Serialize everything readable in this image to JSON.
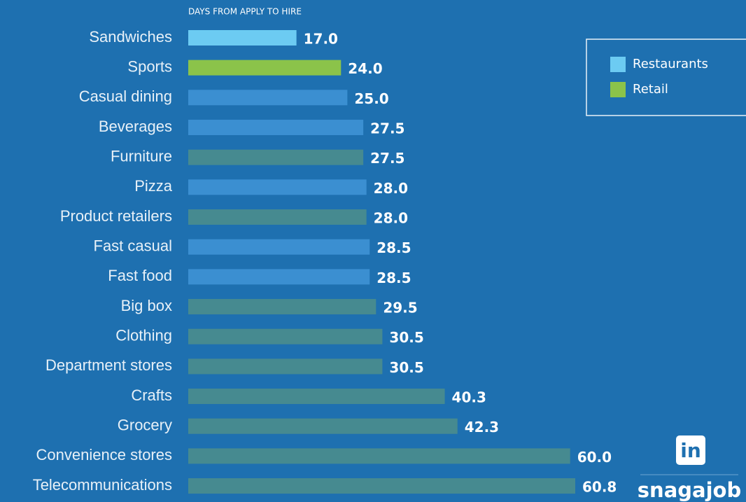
{
  "chart_data": {
    "type": "bar",
    "orientation": "horizontal",
    "axis_label": "DAYS FROM APPLY TO HIRE",
    "categories": [
      "Sandwiches",
      "Sports",
      "Casual dining",
      "Beverages",
      "Furniture",
      "Pizza",
      "Product retailers",
      "Fast casual",
      "Fast food",
      "Big box",
      "Clothing",
      "Department stores",
      "Crafts",
      "Grocery",
      "Convenience stores",
      "Telecommunications"
    ],
    "values": [
      17.0,
      24.0,
      25.0,
      27.5,
      27.5,
      28.0,
      28.0,
      28.5,
      28.5,
      29.5,
      30.5,
      30.5,
      40.3,
      42.3,
      60.0,
      60.8
    ],
    "value_labels": [
      "17.0",
      "24.0",
      "25.0",
      "27.5",
      "27.5",
      "28.0",
      "28.0",
      "28.5",
      "28.5",
      "29.5",
      "30.5",
      "30.5",
      "40.3",
      "42.3",
      "60.0",
      "60.8"
    ],
    "colors": [
      "#6ccbf2",
      "#8bc34a",
      "#3b8fd1",
      "#3b8fd1",
      "#468a90",
      "#3b8fd1",
      "#468a90",
      "#3b8fd1",
      "#3b8fd1",
      "#468a90",
      "#468a90",
      "#468a90",
      "#468a90",
      "#468a90",
      "#468a90",
      "#468a90"
    ],
    "legend": [
      {
        "name": "Restaurants",
        "color": "#6ccbf2"
      },
      {
        "name": "Retail",
        "color": "#8bc34a"
      }
    ],
    "legend_position": "upper right",
    "branding": {
      "linkedin": "in",
      "logo": "snagajob"
    }
  }
}
